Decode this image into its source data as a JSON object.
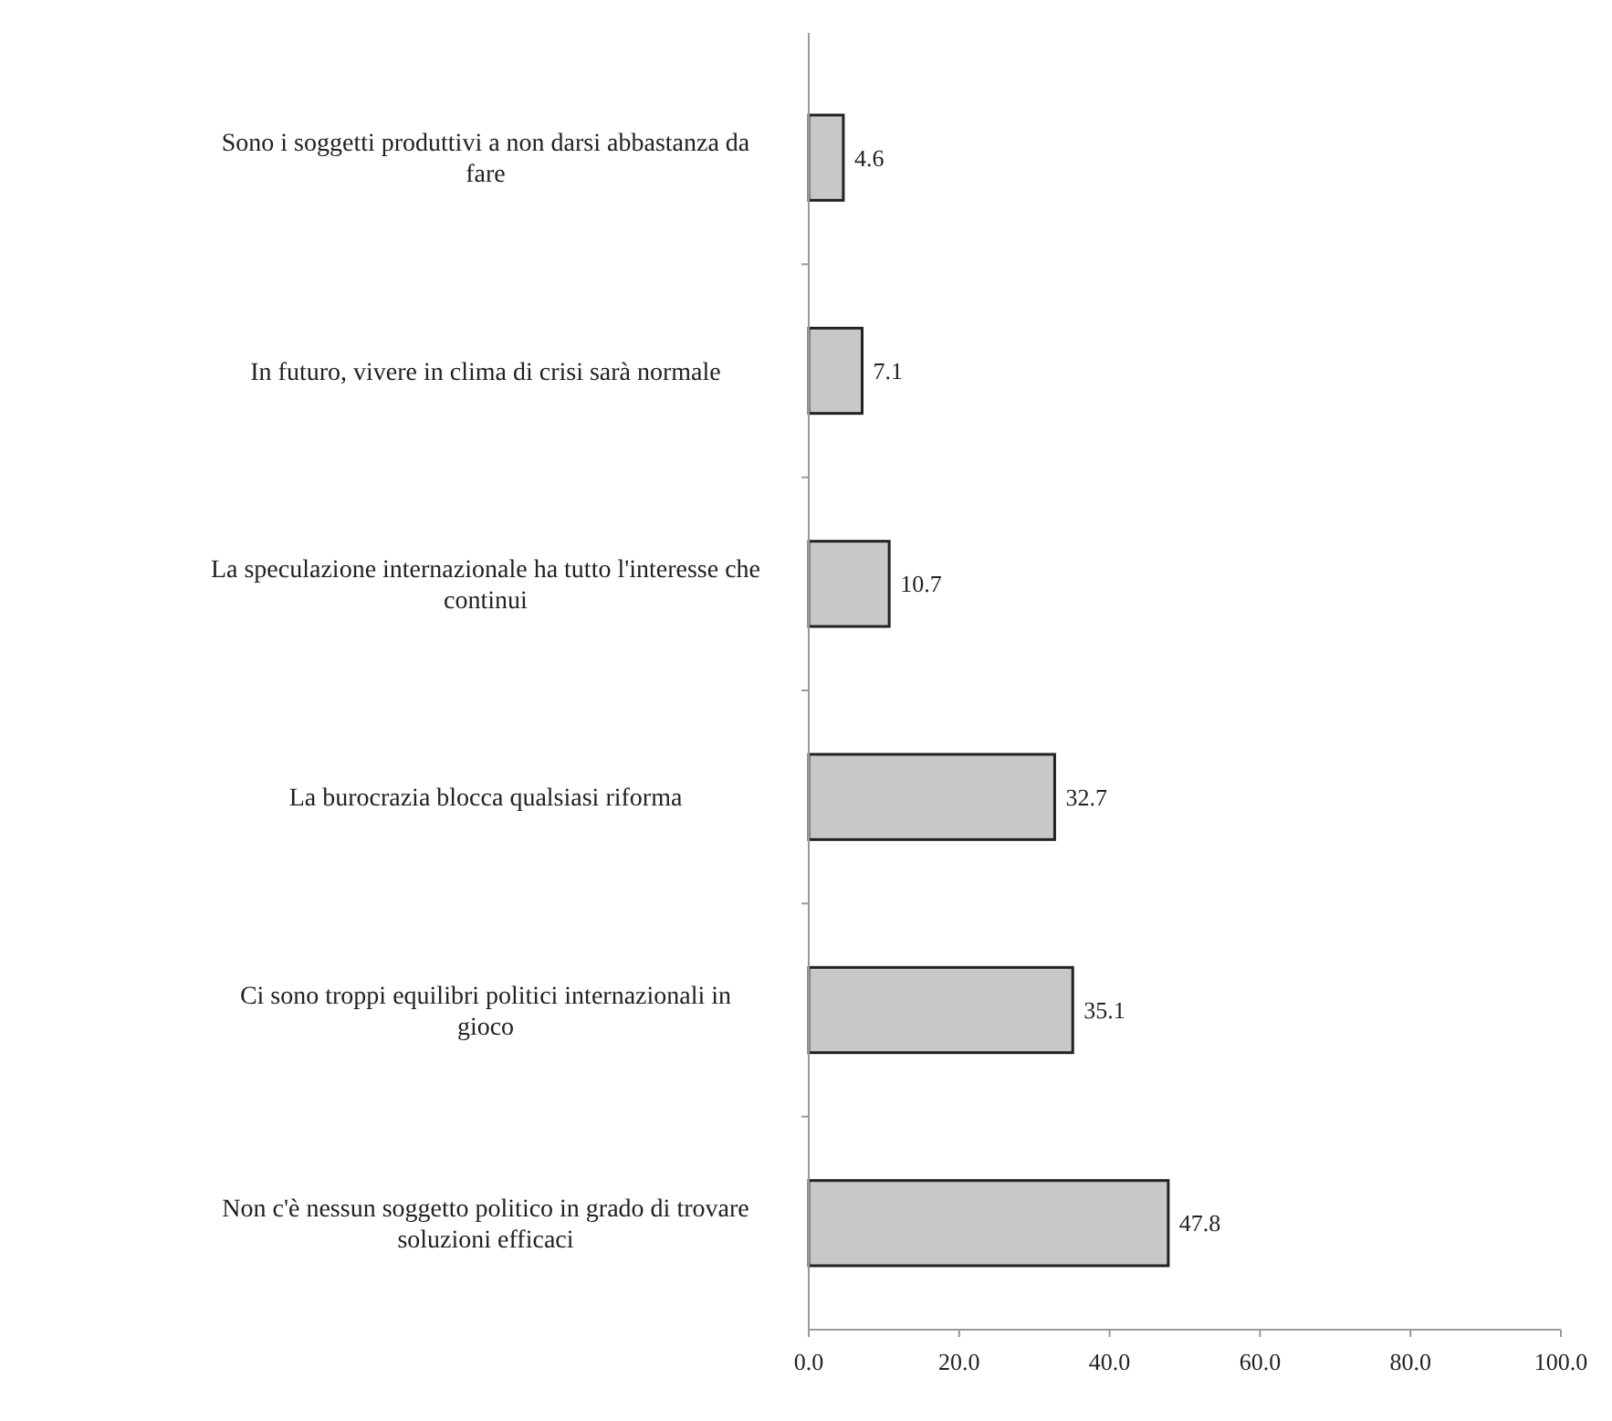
{
  "chart_data": {
    "type": "bar",
    "orientation": "horizontal",
    "categories": [
      "Sono i soggetti produttivi a non darsi abbastanza da fare",
      "In futuro, vivere in clima di crisi sarà normale",
      "La speculazione internazionale ha tutto l'interesse che continui",
      "La burocrazia blocca qualsiasi riforma",
      "Ci sono troppi equilibri politici internazionali in gioco",
      "Non c'è nessun soggetto politico in grado di trovare soluzioni efficaci"
    ],
    "values": [
      4.6,
      7.1,
      10.7,
      32.7,
      35.1,
      47.8
    ],
    "color": "#c8c8c8",
    "xlim": [
      0,
      100
    ],
    "xticks": [
      {
        "value": 0,
        "label": "0.0"
      },
      {
        "value": 20,
        "label": "20.0"
      },
      {
        "value": 40,
        "label": "40.0"
      },
      {
        "value": 60,
        "label": "60.0"
      },
      {
        "value": 80,
        "label": "80.0"
      },
      {
        "value": 100,
        "label": "100.0"
      }
    ],
    "data_labels": true
  }
}
